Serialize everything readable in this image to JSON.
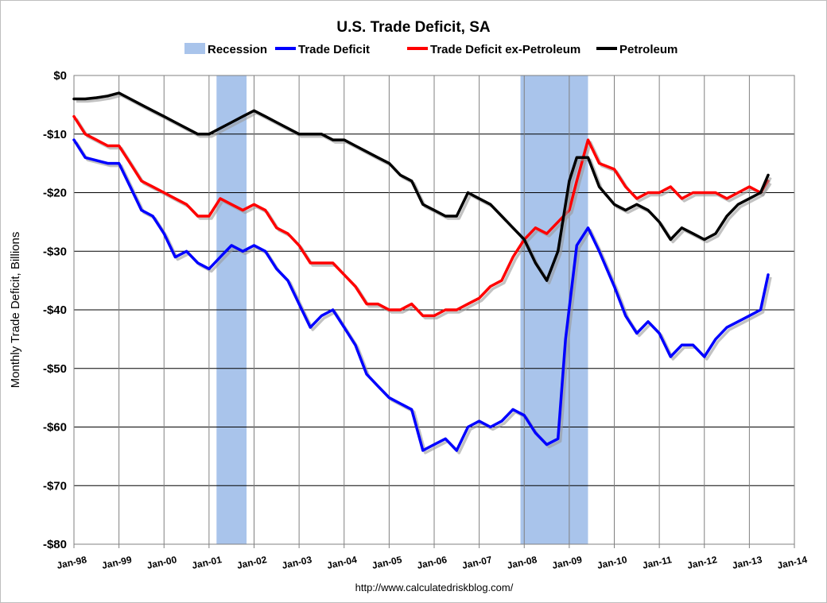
{
  "chart_data": {
    "type": "line",
    "title": "U.S. Trade Deficit, SA",
    "ylabel": "Monthly Trade Deficit, Billions",
    "ylim": [
      -80,
      0
    ],
    "y_ticks": [
      "$0",
      "-$10",
      "-$20",
      "-$30",
      "-$40",
      "-$50",
      "-$60",
      "-$70",
      "-$80"
    ],
    "y_tick_values": [
      0,
      -10,
      -20,
      -30,
      -40,
      -50,
      -60,
      -70,
      -80
    ],
    "x_ticks": [
      "Jan-98",
      "Jan-99",
      "Jan-00",
      "Jan-01",
      "Jan-02",
      "Jan-03",
      "Jan-04",
      "Jan-05",
      "Jan-06",
      "Jan-07",
      "Jan-08",
      "Jan-09",
      "Jan-10",
      "Jan-11",
      "Jan-12",
      "Jan-13",
      "Jan-14"
    ],
    "xlim": [
      "Jan-98",
      "Jan-14"
    ],
    "grid": true,
    "legend_position": "top",
    "recessions": [
      {
        "start": "2001-03",
        "end": "2001-11"
      },
      {
        "start": "2007-12",
        "end": "2009-06"
      }
    ],
    "legend": [
      {
        "name": "Recession",
        "color": "#a9c4eb",
        "kind": "area"
      },
      {
        "name": "Trade Deficit",
        "color": "#0000ff",
        "kind": "line"
      },
      {
        "name": "Trade Deficit ex-Petroleum",
        "color": "#ff0000",
        "kind": "line"
      },
      {
        "name": "Petroleum",
        "color": "#000000",
        "kind": "line"
      }
    ],
    "series": [
      {
        "name": "Trade Deficit",
        "color": "#0000ff",
        "points": [
          [
            "1998-01",
            -11
          ],
          [
            "1998-04",
            -14
          ],
          [
            "1998-07",
            -14.5
          ],
          [
            "1998-10",
            -15
          ],
          [
            "1999-01",
            -15
          ],
          [
            "1999-04",
            -19
          ],
          [
            "1999-07",
            -23
          ],
          [
            "1999-10",
            -24
          ],
          [
            "2000-01",
            -27
          ],
          [
            "2000-04",
            -31
          ],
          [
            "2000-07",
            -30
          ],
          [
            "2000-10",
            -32
          ],
          [
            "2001-01",
            -33
          ],
          [
            "2001-04",
            -31
          ],
          [
            "2001-07",
            -29
          ],
          [
            "2001-10",
            -30
          ],
          [
            "2002-01",
            -29
          ],
          [
            "2002-04",
            -30
          ],
          [
            "2002-07",
            -33
          ],
          [
            "2002-10",
            -35
          ],
          [
            "2003-01",
            -39
          ],
          [
            "2003-04",
            -43
          ],
          [
            "2003-07",
            -41
          ],
          [
            "2003-10",
            -40
          ],
          [
            "2004-01",
            -43
          ],
          [
            "2004-04",
            -46
          ],
          [
            "2004-07",
            -51
          ],
          [
            "2004-10",
            -53
          ],
          [
            "2005-01",
            -55
          ],
          [
            "2005-04",
            -56
          ],
          [
            "2005-07",
            -57
          ],
          [
            "2005-10",
            -64
          ],
          [
            "2006-01",
            -63
          ],
          [
            "2006-04",
            -62
          ],
          [
            "2006-07",
            -64
          ],
          [
            "2006-10",
            -60
          ],
          [
            "2007-01",
            -59
          ],
          [
            "2007-04",
            -60
          ],
          [
            "2007-07",
            -59
          ],
          [
            "2007-10",
            -57
          ],
          [
            "2008-01",
            -58
          ],
          [
            "2008-04",
            -61
          ],
          [
            "2008-07",
            -63
          ],
          [
            "2008-10",
            -62
          ],
          [
            "2008-12",
            -45
          ],
          [
            "2009-03",
            -29
          ],
          [
            "2009-06",
            -26
          ],
          [
            "2009-09",
            -30
          ],
          [
            "2010-01",
            -36
          ],
          [
            "2010-04",
            -41
          ],
          [
            "2010-07",
            -44
          ],
          [
            "2010-10",
            -42
          ],
          [
            "2011-01",
            -44
          ],
          [
            "2011-04",
            -48
          ],
          [
            "2011-07",
            -46
          ],
          [
            "2011-10",
            -46
          ],
          [
            "2012-01",
            -48
          ],
          [
            "2012-04",
            -45
          ],
          [
            "2012-07",
            -43
          ],
          [
            "2012-10",
            -42
          ],
          [
            "2013-01",
            -41
          ],
          [
            "2013-04",
            -40
          ],
          [
            "2013-06",
            -34
          ]
        ]
      },
      {
        "name": "Trade Deficit ex-Petroleum",
        "color": "#ff0000",
        "points": [
          [
            "1998-01",
            -7
          ],
          [
            "1998-04",
            -10
          ],
          [
            "1998-07",
            -11
          ],
          [
            "1998-10",
            -12
          ],
          [
            "1999-01",
            -12
          ],
          [
            "1999-04",
            -15
          ],
          [
            "1999-07",
            -18
          ],
          [
            "1999-10",
            -19
          ],
          [
            "2000-01",
            -20
          ],
          [
            "2000-04",
            -21
          ],
          [
            "2000-07",
            -22
          ],
          [
            "2000-10",
            -24
          ],
          [
            "2001-01",
            -24
          ],
          [
            "2001-04",
            -21
          ],
          [
            "2001-07",
            -22
          ],
          [
            "2001-10",
            -23
          ],
          [
            "2002-01",
            -22
          ],
          [
            "2002-04",
            -23
          ],
          [
            "2002-07",
            -26
          ],
          [
            "2002-10",
            -27
          ],
          [
            "2003-01",
            -29
          ],
          [
            "2003-04",
            -32
          ],
          [
            "2003-07",
            -32
          ],
          [
            "2003-10",
            -32
          ],
          [
            "2004-01",
            -34
          ],
          [
            "2004-04",
            -36
          ],
          [
            "2004-07",
            -39
          ],
          [
            "2004-10",
            -39
          ],
          [
            "2005-01",
            -40
          ],
          [
            "2005-04",
            -40
          ],
          [
            "2005-07",
            -39
          ],
          [
            "2005-10",
            -41
          ],
          [
            "2006-01",
            -41
          ],
          [
            "2006-04",
            -40
          ],
          [
            "2006-07",
            -40
          ],
          [
            "2006-10",
            -39
          ],
          [
            "2007-01",
            -38
          ],
          [
            "2007-04",
            -36
          ],
          [
            "2007-07",
            -35
          ],
          [
            "2007-10",
            -31
          ],
          [
            "2008-01",
            -28
          ],
          [
            "2008-04",
            -26
          ],
          [
            "2008-07",
            -27
          ],
          [
            "2008-10",
            -25
          ],
          [
            "2009-01",
            -23
          ],
          [
            "2009-03",
            -18
          ],
          [
            "2009-06",
            -11
          ],
          [
            "2009-09",
            -15
          ],
          [
            "2010-01",
            -16
          ],
          [
            "2010-04",
            -19
          ],
          [
            "2010-07",
            -21
          ],
          [
            "2010-10",
            -20
          ],
          [
            "2011-01",
            -20
          ],
          [
            "2011-04",
            -19
          ],
          [
            "2011-07",
            -21
          ],
          [
            "2011-10",
            -20
          ],
          [
            "2012-01",
            -20
          ],
          [
            "2012-04",
            -20
          ],
          [
            "2012-07",
            -21
          ],
          [
            "2012-10",
            -20
          ],
          [
            "2013-01",
            -19
          ],
          [
            "2013-04",
            -20
          ],
          [
            "2013-06",
            -18
          ]
        ]
      },
      {
        "name": "Petroleum",
        "color": "#000000",
        "points": [
          [
            "1998-01",
            -4
          ],
          [
            "1998-04",
            -4
          ],
          [
            "1998-07",
            -3.8
          ],
          [
            "1998-10",
            -3.5
          ],
          [
            "1999-01",
            -3
          ],
          [
            "1999-04",
            -4
          ],
          [
            "1999-07",
            -5
          ],
          [
            "1999-10",
            -6
          ],
          [
            "2000-01",
            -7
          ],
          [
            "2000-04",
            -8
          ],
          [
            "2000-07",
            -9
          ],
          [
            "2000-10",
            -10
          ],
          [
            "2001-01",
            -10
          ],
          [
            "2001-04",
            -9
          ],
          [
            "2001-07",
            -8
          ],
          [
            "2001-10",
            -7
          ],
          [
            "2002-01",
            -6
          ],
          [
            "2002-04",
            -7
          ],
          [
            "2002-07",
            -8
          ],
          [
            "2002-10",
            -9
          ],
          [
            "2003-01",
            -10
          ],
          [
            "2003-04",
            -10
          ],
          [
            "2003-07",
            -10
          ],
          [
            "2003-10",
            -11
          ],
          [
            "2004-01",
            -11
          ],
          [
            "2004-04",
            -12
          ],
          [
            "2004-07",
            -13
          ],
          [
            "2004-10",
            -14
          ],
          [
            "2005-01",
            -15
          ],
          [
            "2005-04",
            -17
          ],
          [
            "2005-07",
            -18
          ],
          [
            "2005-10",
            -22
          ],
          [
            "2006-01",
            -23
          ],
          [
            "2006-04",
            -24
          ],
          [
            "2006-07",
            -24
          ],
          [
            "2006-10",
            -20
          ],
          [
            "2007-01",
            -21
          ],
          [
            "2007-04",
            -22
          ],
          [
            "2007-07",
            -24
          ],
          [
            "2007-10",
            -26
          ],
          [
            "2008-01",
            -28
          ],
          [
            "2008-04",
            -32
          ],
          [
            "2008-07",
            -35
          ],
          [
            "2008-10",
            -30
          ],
          [
            "2009-01",
            -18
          ],
          [
            "2009-03",
            -14
          ],
          [
            "2009-06",
            -14
          ],
          [
            "2009-09",
            -19
          ],
          [
            "2010-01",
            -22
          ],
          [
            "2010-04",
            -23
          ],
          [
            "2010-07",
            -22
          ],
          [
            "2010-10",
            -23
          ],
          [
            "2011-01",
            -25
          ],
          [
            "2011-04",
            -28
          ],
          [
            "2011-07",
            -26
          ],
          [
            "2011-10",
            -27
          ],
          [
            "2012-01",
            -28
          ],
          [
            "2012-04",
            -27
          ],
          [
            "2012-07",
            -24
          ],
          [
            "2012-10",
            -22
          ],
          [
            "2013-01",
            -21
          ],
          [
            "2013-04",
            -20
          ],
          [
            "2013-06",
            -17
          ]
        ]
      }
    ]
  },
  "footer": "http://www.calculatedriskblog.com/"
}
